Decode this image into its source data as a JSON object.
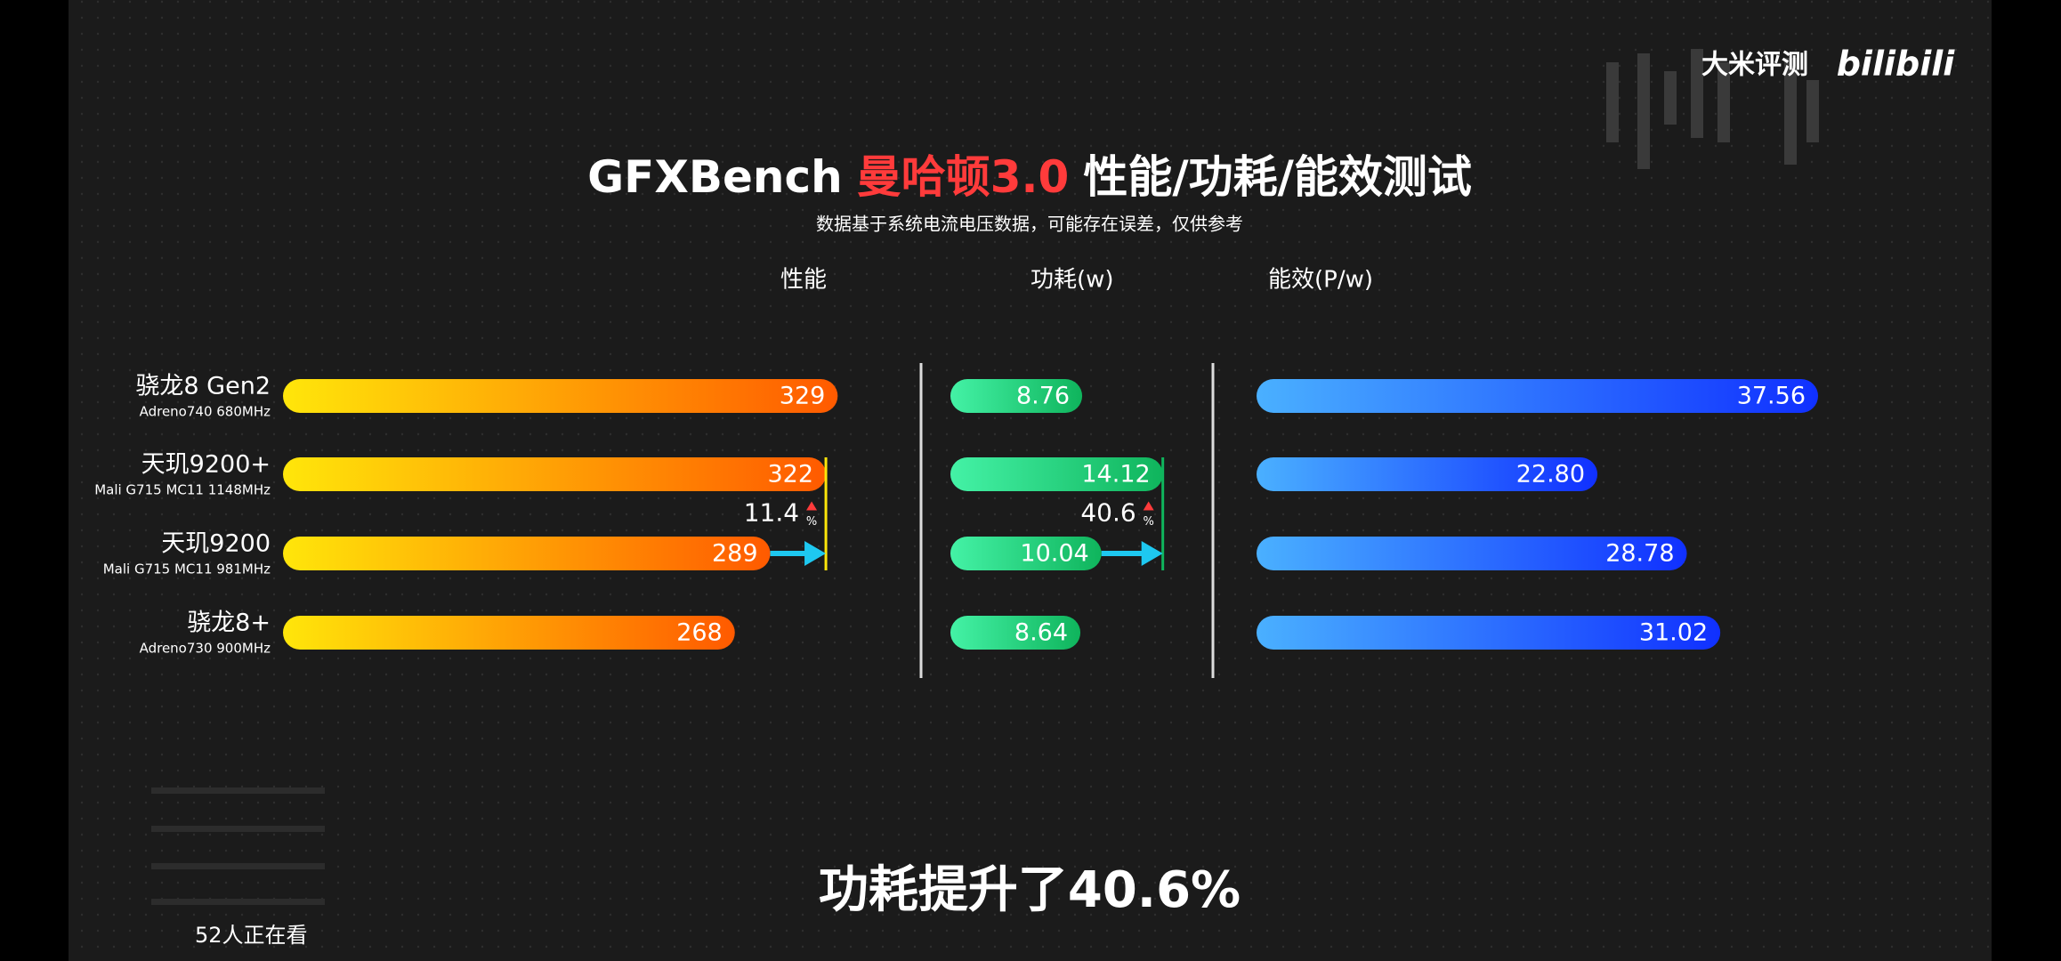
{
  "chart_data": {
    "type": "bar",
    "orientation": "horizontal",
    "title": {
      "brand": "GFXBench",
      "highlight": "曼哈顿3.0",
      "rest": "性能/功耗/能效测试"
    },
    "subtitle": "数据基于系统电流电压数据，可能存在误差，仅供参考",
    "categories": [
      "骁龙8 Gen2",
      "天玑9200+",
      "天玑9200",
      "骁龙8+"
    ],
    "category_details": [
      "Adreno740  680MHz",
      "Mali G715 MC11  1148MHz",
      "Mali G715 MC11  981MHz",
      "Adreno730  900MHz"
    ],
    "series": [
      {
        "name": "性能",
        "colors": [
          "#ffe60a",
          "#ff5a00"
        ],
        "values": [
          329,
          322,
          289,
          268
        ],
        "value_labels": [
          "329",
          "322",
          "289",
          "268"
        ],
        "xlim": [
          0,
          370
        ]
      },
      {
        "name": "功耗(w)",
        "colors": [
          "#44f2a6",
          "#0fb45c"
        ],
        "values": [
          8.76,
          14.12,
          10.04,
          8.64
        ],
        "value_labels": [
          "8.76",
          "14.12",
          "10.04",
          "8.64"
        ],
        "xlim": [
          0,
          15.5
        ]
      },
      {
        "name": "能效(P/w)",
        "colors": [
          "#4ab0ff",
          "#1030ff"
        ],
        "values": [
          37.56,
          22.8,
          28.78,
          31.02
        ],
        "value_labels": [
          "37.56",
          "22.80",
          "28.78",
          "31.02"
        ],
        "xlim": [
          0,
          40
        ]
      }
    ],
    "annotations": [
      {
        "value": 11.4,
        "unit": "%"
      },
      {
        "value": 40.6,
        "unit": "%"
      }
    ]
  },
  "overlay": {
    "watermark": "大米评测",
    "platform": "bilibili",
    "caption": "功耗提升了40.6%",
    "viewers": "52人正在看"
  }
}
